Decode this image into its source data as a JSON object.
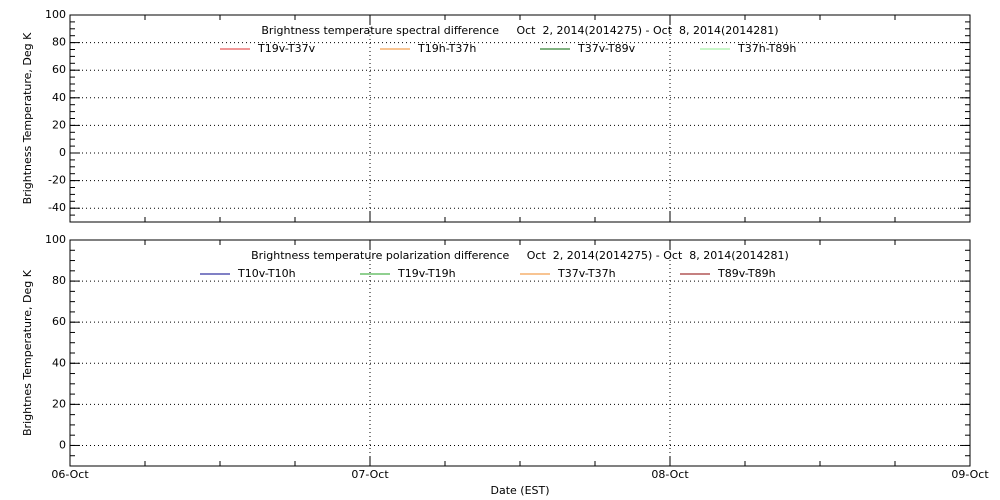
{
  "chart_data": [
    {
      "type": "line",
      "title": "Brightness temperature spectral difference     Oct  2, 2014(2014275) - Oct  8, 2014(2014281)",
      "ylabel": "Brightness Temperature, Deg K",
      "ylim": [
        -50,
        100
      ],
      "yticks": [
        -40,
        -20,
        0,
        20,
        40,
        60,
        80,
        100
      ],
      "grid": true,
      "series": [
        {
          "name": "T19v-T37v",
          "color": "#e03030",
          "values": [
            null,
            null,
            null,
            null
          ]
        },
        {
          "name": "T19h-T37h",
          "color": "#f08a24",
          "values": [
            null,
            null,
            null,
            null
          ]
        },
        {
          "name": "T37v-T89v",
          "color": "#006400",
          "values": [
            null,
            null,
            null,
            null
          ]
        },
        {
          "name": "T37h-T89h",
          "color": "#90ee90",
          "values": [
            null,
            null,
            null,
            null
          ]
        }
      ]
    },
    {
      "type": "line",
      "title": "Brightness temperature polarization difference     Oct  2, 2014(2014275) - Oct  8, 2014(2014281)",
      "ylabel": "Brightnes Temperature, Deg K",
      "xlabel": "Date (EST)",
      "categories": [
        "06-Oct",
        "07-Oct",
        "08-Oct",
        "09-Oct"
      ],
      "ylim": [
        -10,
        100
      ],
      "yticks": [
        0,
        20,
        40,
        60,
        80,
        100
      ],
      "grid": true,
      "series": [
        {
          "name": "T10v-T10h",
          "color": "#00008b",
          "values": [
            null,
            null,
            null,
            null
          ]
        },
        {
          "name": "T19v-T19h",
          "color": "#22a022",
          "values": [
            null,
            null,
            null,
            null
          ]
        },
        {
          "name": "T37v-T37h",
          "color": "#f08a24",
          "values": [
            null,
            null,
            null,
            null
          ]
        },
        {
          "name": "T89v-T89h",
          "color": "#8b0000",
          "values": [
            null,
            null,
            null,
            null
          ]
        }
      ]
    }
  ]
}
